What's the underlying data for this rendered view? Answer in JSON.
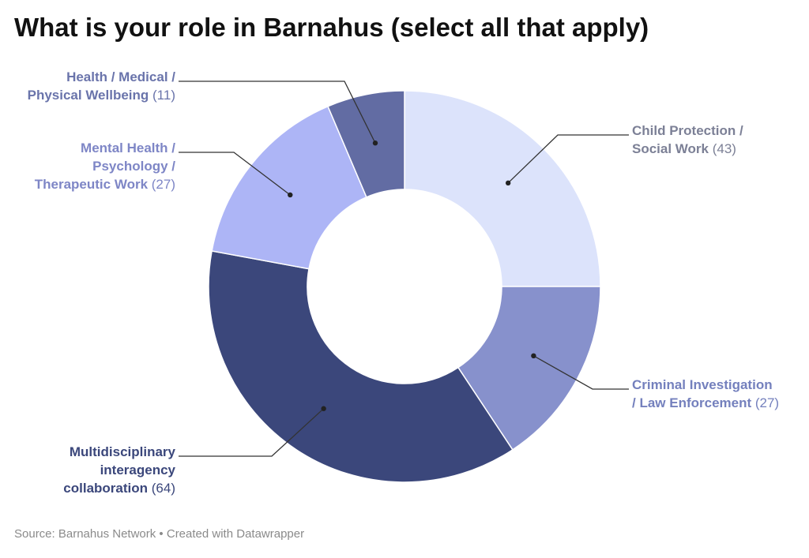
{
  "title": "What is your role in Barnahus (select all that apply)",
  "footer": {
    "source": "Source: Barnahus Network",
    "separator": " • ",
    "credit": "Created with Datawrapper"
  },
  "chart_data": {
    "type": "pie",
    "donut": true,
    "title": "What is your role in Barnahus (select all that apply)",
    "slices": [
      {
        "label": "Child Protection / Social Work",
        "lines": [
          "Child Protection /",
          "Social Work"
        ],
        "value": 43,
        "value_text": "(43)",
        "color": "#dce3fb",
        "label_color": "#7c8096",
        "side": "right"
      },
      {
        "label": "Criminal Investigation / Law Enforcement",
        "lines": [
          "Criminal Investigation",
          "/ Law Enforcement"
        ],
        "value": 27,
        "value_text": "(27)",
        "color": "#8791cc",
        "label_color": "#7480bd",
        "side": "right"
      },
      {
        "label": "Multidisciplinary interagency collaboration",
        "lines": [
          "Multidisciplinary",
          "interagency",
          "collaboration"
        ],
        "value": 64,
        "value_text": "(64)",
        "color": "#3b477b",
        "label_color": "#3b477b",
        "side": "left"
      },
      {
        "label": "Mental Health / Psychology / Therapeutic Work",
        "lines": [
          "Mental Health /",
          "Psychology /",
          "Therapeutic Work"
        ],
        "value": 27,
        "value_text": "(27)",
        "color": "#adb5f6",
        "label_color": "#7e86c6",
        "side": "left"
      },
      {
        "label": "Health / Medical / Physical Wellbeing",
        "lines": [
          "Health / Medical /",
          "Physical Wellbeing"
        ],
        "value": 11,
        "value_text": "(11)",
        "color": "#626ca3",
        "label_color": "#6a74ab",
        "side": "left"
      }
    ],
    "legend": "none",
    "labels": "outside-with-leader-lines"
  }
}
